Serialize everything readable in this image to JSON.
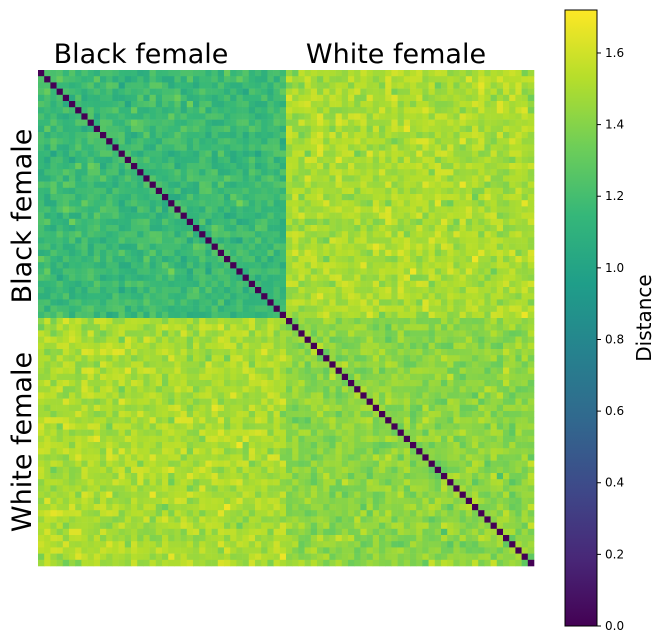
{
  "chart_data": {
    "type": "heatmap",
    "title": "",
    "group_labels_top": [
      "Black female",
      "White female"
    ],
    "group_labels_left": [
      "Black female",
      "White female"
    ],
    "n_per_group": 40,
    "n_total": 80,
    "colormap": "viridis",
    "colorbar": {
      "label": "Distance",
      "range": [
        0.0,
        1.72
      ],
      "ticks": [
        "0.0",
        "0.2",
        "0.4",
        "0.6",
        "0.8",
        "1.0",
        "1.2",
        "1.4",
        "1.6"
      ],
      "tick_values": [
        0.0,
        0.2,
        0.4,
        0.6,
        0.8,
        1.0,
        1.2,
        1.4,
        1.6
      ]
    },
    "block_means": {
      "black_black": 1.17,
      "white_white": 1.42,
      "black_white": 1.5
    },
    "block_spread": 0.09,
    "diagonal_value": 0.0
  },
  "colors": {
    "viridis_stops": [
      "#440154",
      "#482878",
      "#3e4989",
      "#31688e",
      "#26828e",
      "#1f9e89",
      "#35b779",
      "#6ece58",
      "#b5de2b",
      "#fde725"
    ]
  }
}
